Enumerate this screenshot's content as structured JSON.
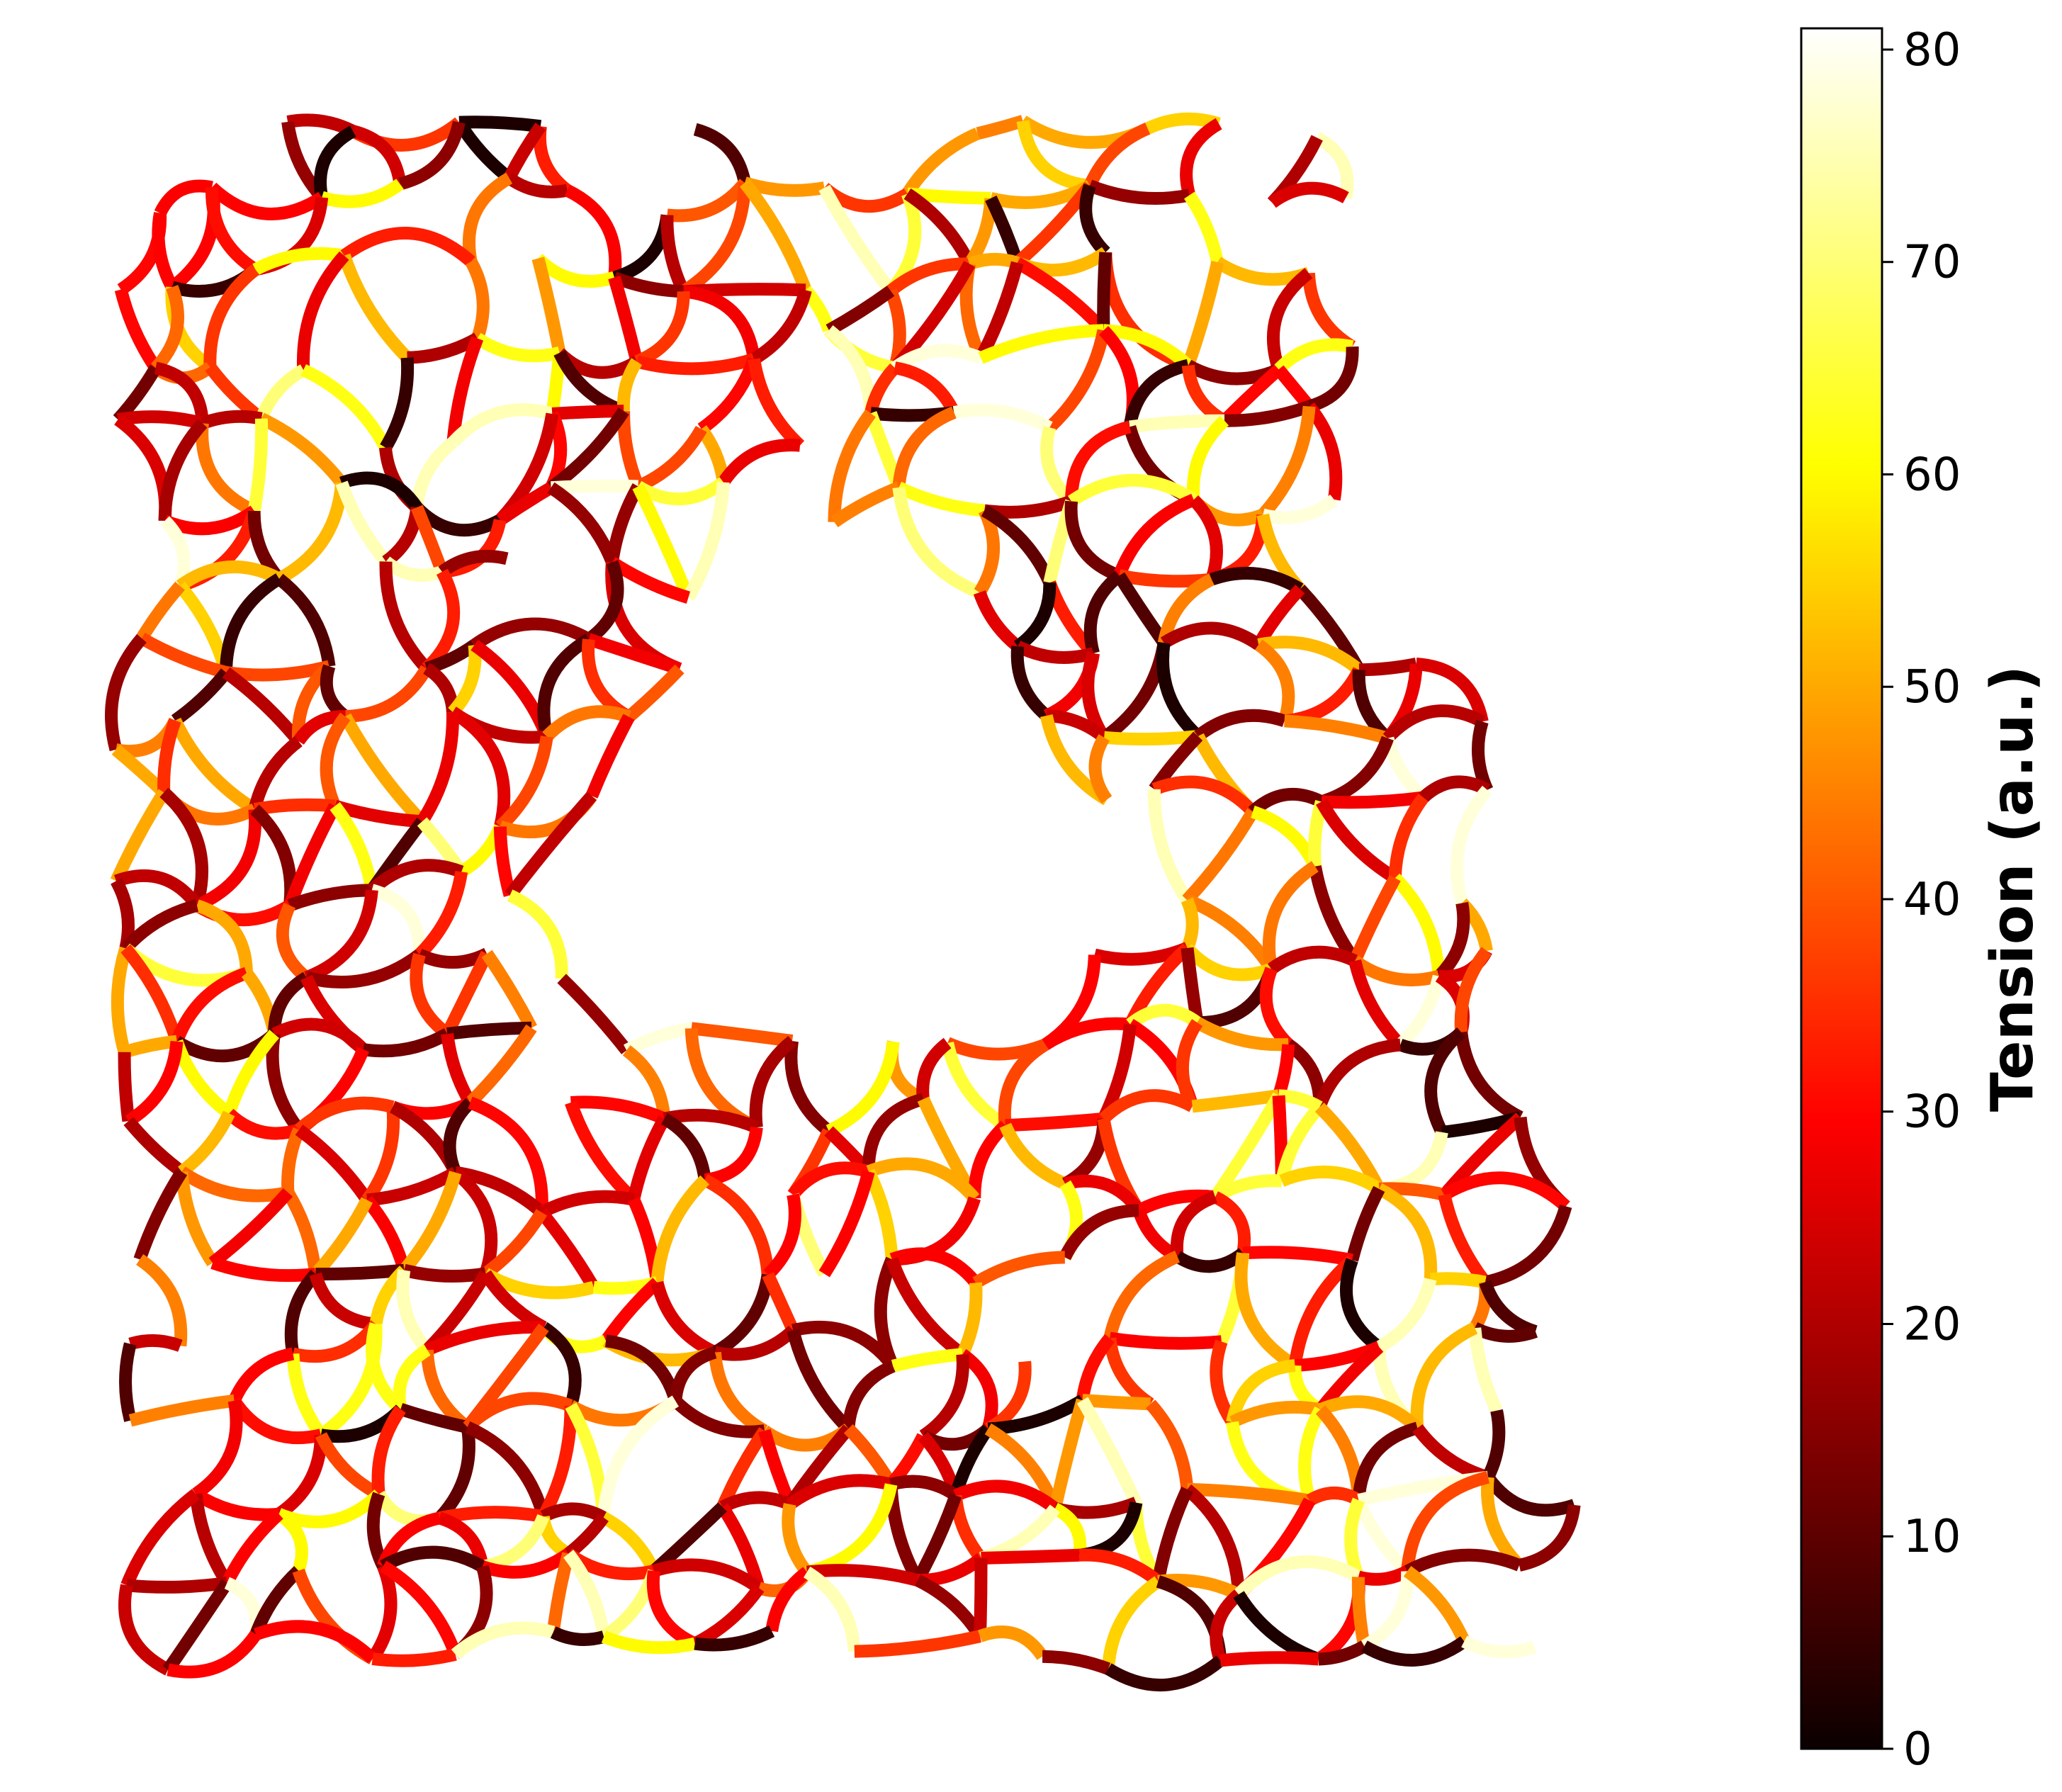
{
  "chart_data": {
    "type": "network",
    "colormap": "hot",
    "colorbar": {
      "label": "Tension (a.u.)",
      "range": [
        0,
        81
      ],
      "ticks": [
        0,
        10,
        20,
        30,
        40,
        50,
        60,
        70,
        80
      ],
      "tick_labels": [
        "0",
        "10",
        "20",
        "30",
        "40",
        "50",
        "60",
        "70",
        "80"
      ]
    },
    "edge_tension_sample": [
      10,
      18,
      22,
      30,
      35,
      45,
      55,
      62,
      70,
      78,
      15,
      25,
      40,
      8,
      20,
      28,
      33,
      50,
      60,
      12,
      24,
      27,
      38,
      42,
      5,
      16,
      21,
      31,
      48,
      65,
      75,
      19,
      26,
      29,
      36,
      44,
      52,
      2,
      14,
      23
    ]
  }
}
